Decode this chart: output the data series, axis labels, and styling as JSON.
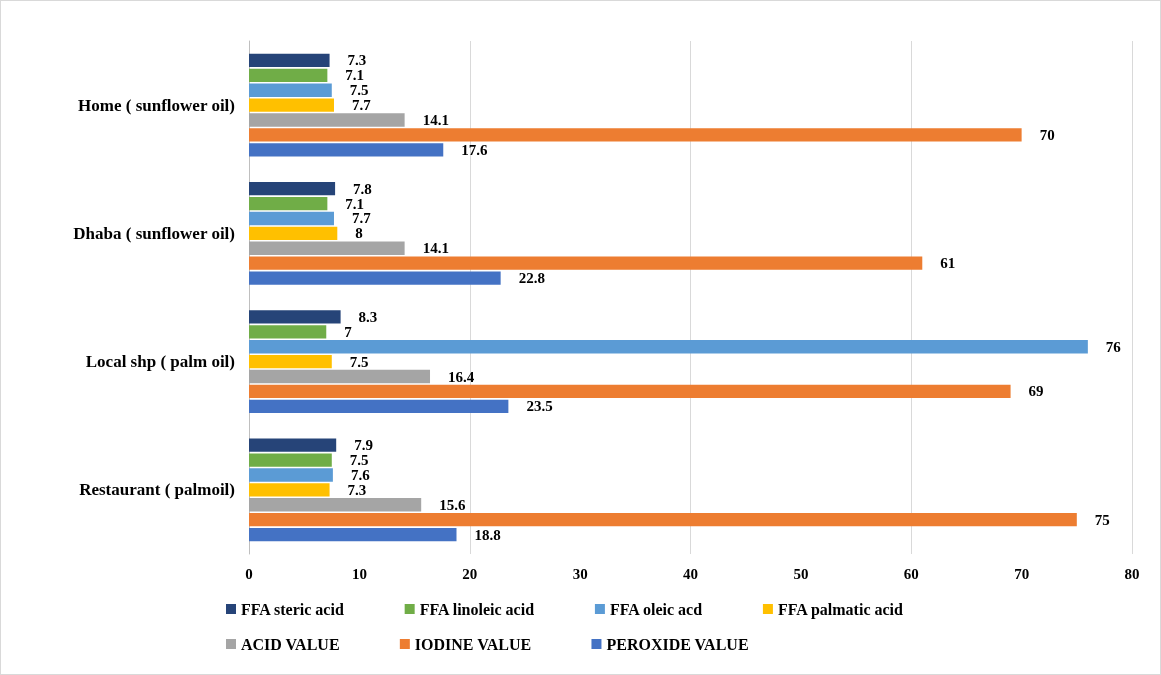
{
  "chart_data": {
    "type": "bar",
    "orientation": "horizontal",
    "categories": [
      "Home ( sunflower oil)",
      "Dhaba ( sunflower oil)",
      "Local shp ( palm oil)",
      "Restaurant ( palmoil)"
    ],
    "series": [
      {
        "name": "FFA steric acid",
        "color": "#264478",
        "values": [
          7.3,
          7.8,
          8.3,
          7.9
        ]
      },
      {
        "name": "FFA linoleic acid",
        "color": "#70ad47",
        "values": [
          7.1,
          7.1,
          7,
          7.5
        ]
      },
      {
        "name": "FFA oleic acd",
        "color": "#5b9bd5",
        "values": [
          7.5,
          7.7,
          76,
          7.6
        ]
      },
      {
        "name": "FFA palmatic acid",
        "color": "#ffc000",
        "values": [
          7.7,
          8,
          7.5,
          7.3
        ]
      },
      {
        "name": "ACID VALUE",
        "color": "#a5a5a5",
        "values": [
          14.1,
          14.1,
          16.4,
          15.6
        ]
      },
      {
        "name": "IODINE VALUE",
        "color": "#ed7d31",
        "values": [
          70,
          61,
          69,
          75
        ]
      },
      {
        "name": "PEROXIDE VALUE",
        "color": "#4472c4",
        "values": [
          17.6,
          22.8,
          23.5,
          18.8
        ]
      }
    ],
    "xlim": [
      0,
      80
    ],
    "xticks": [
      0,
      10,
      20,
      30,
      40,
      50,
      60,
      70,
      80
    ],
    "grid": "x",
    "legend": "bottom",
    "data_labels": true
  }
}
